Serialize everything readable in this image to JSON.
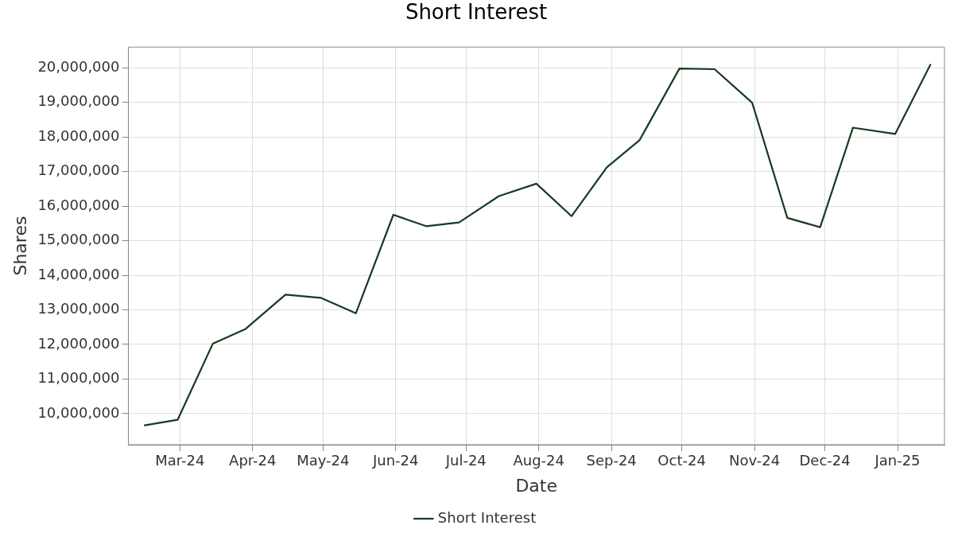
{
  "chart_data": {
    "type": "line",
    "title": "Short Interest",
    "xlabel": "Date",
    "ylabel": "Shares",
    "x": [
      "2024-02-15",
      "2024-02-29",
      "2024-03-15",
      "2024-03-29",
      "2024-04-15",
      "2024-04-30",
      "2024-05-15",
      "2024-05-31",
      "2024-06-14",
      "2024-06-28",
      "2024-07-15",
      "2024-07-31",
      "2024-08-15",
      "2024-08-30",
      "2024-09-13",
      "2024-09-30",
      "2024-10-15",
      "2024-10-31",
      "2024-11-15",
      "2024-11-29",
      "2024-12-13",
      "2024-12-31",
      "2025-01-15"
    ],
    "series": [
      {
        "name": "Short Interest",
        "color": "#173b1f",
        "values": [
          9660000,
          9820000,
          12020000,
          12450000,
          13440000,
          13350000,
          12900000,
          15750000,
          15420000,
          15530000,
          16290000,
          16650000,
          15710000,
          17120000,
          17910000,
          19980000,
          19960000,
          18990000,
          15660000,
          15390000,
          18270000,
          18090000,
          20090000
        ]
      }
    ],
    "xlim": [
      "2024-02-08",
      "2025-01-21"
    ],
    "xticks": [
      {
        "value": "2024-03-01",
        "label": "Mar-24"
      },
      {
        "value": "2024-04-01",
        "label": "Apr-24"
      },
      {
        "value": "2024-05-01",
        "label": "May-24"
      },
      {
        "value": "2024-06-01",
        "label": "Jun-24"
      },
      {
        "value": "2024-07-01",
        "label": "Jul-24"
      },
      {
        "value": "2024-08-01",
        "label": "Aug-24"
      },
      {
        "value": "2024-09-01",
        "label": "Sep-24"
      },
      {
        "value": "2024-10-01",
        "label": "Oct-24"
      },
      {
        "value": "2024-11-01",
        "label": "Nov-24"
      },
      {
        "value": "2024-12-01",
        "label": "Dec-24"
      },
      {
        "value": "2025-01-01",
        "label": "Jan-25"
      }
    ],
    "ylim": [
      9100000,
      20600000
    ],
    "yticks": [
      {
        "value": 10000000,
        "label": "10,000,000"
      },
      {
        "value": 11000000,
        "label": "11,000,000"
      },
      {
        "value": 12000000,
        "label": "12,000,000"
      },
      {
        "value": 13000000,
        "label": "13,000,000"
      },
      {
        "value": 14000000,
        "label": "14,000,000"
      },
      {
        "value": 15000000,
        "label": "15,000,000"
      },
      {
        "value": 16000000,
        "label": "16,000,000"
      },
      {
        "value": 17000000,
        "label": "17,000,000"
      },
      {
        "value": 18000000,
        "label": "18,000,000"
      },
      {
        "value": 19000000,
        "label": "19,000,000"
      },
      {
        "value": 20000000,
        "label": "20,000,000"
      }
    ],
    "grid": true,
    "legend": "bottom",
    "marker": "none",
    "line_style": "solid"
  }
}
